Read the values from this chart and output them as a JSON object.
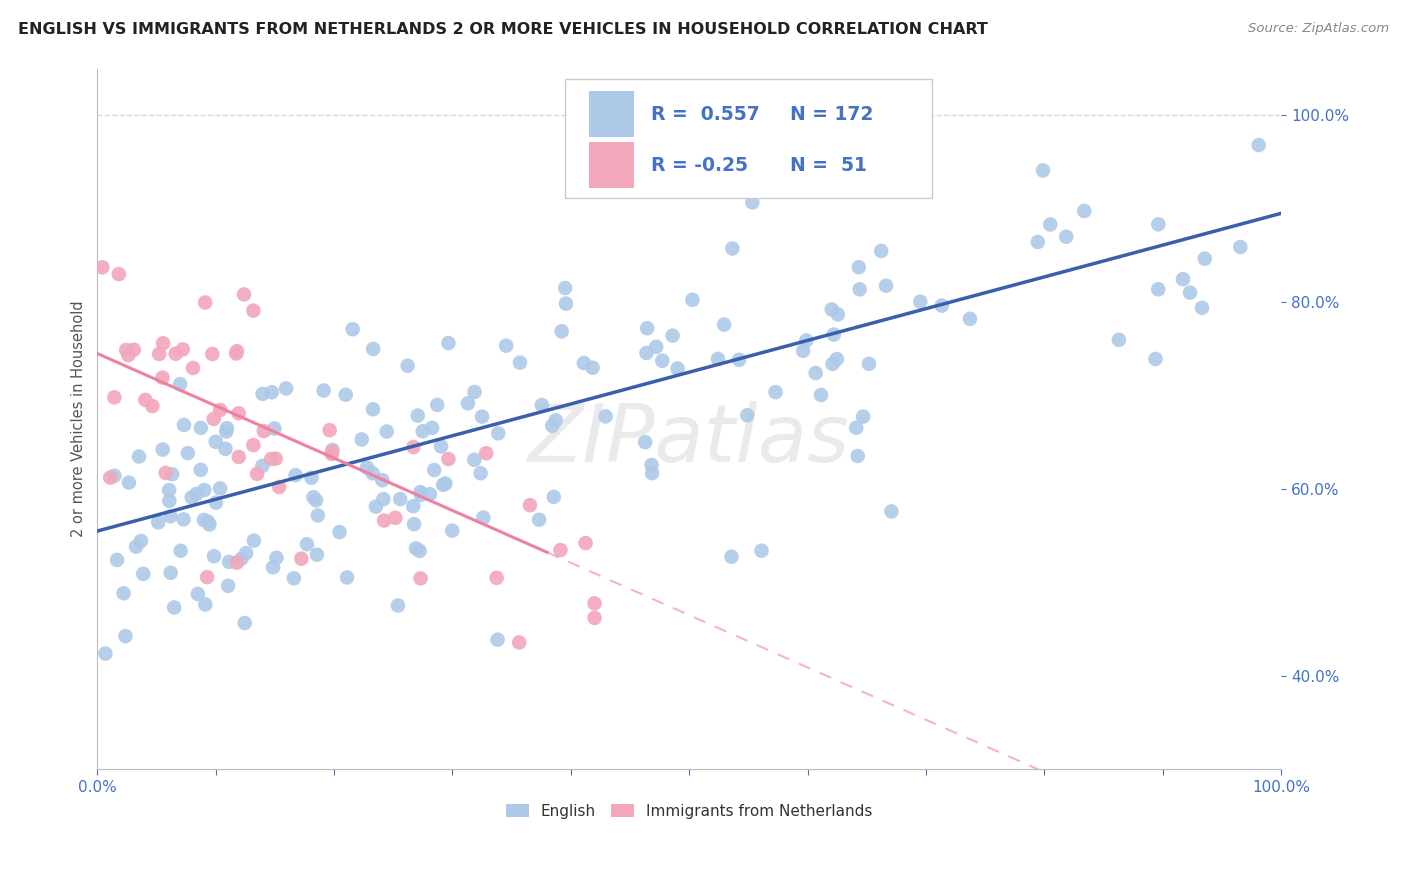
{
  "title": "ENGLISH VS IMMIGRANTS FROM NETHERLANDS 2 OR MORE VEHICLES IN HOUSEHOLD CORRELATION CHART",
  "source_text": "Source: ZipAtlas.com",
  "ylabel": "2 or more Vehicles in Household",
  "watermark": "ZIPatlas",
  "xlim": [
    0.0,
    1.0
  ],
  "ylim": [
    0.3,
    1.05
  ],
  "R_english": 0.557,
  "N_english": 172,
  "R_netherlands": -0.25,
  "N_netherlands": 51,
  "english_color": "#adc9e8",
  "netherlands_color": "#f2a7bb",
  "english_line_color": "#3a5fad",
  "netherlands_line_color": "#f080a0",
  "background_color": "#ffffff",
  "grid_color": "#d8d8d8",
  "blue_legend_color": "#4472c4",
  "eng_line_start_y": 0.555,
  "eng_line_end_y": 0.895,
  "nl_line_start_y": 0.745,
  "nl_line_end_y": 0.185
}
